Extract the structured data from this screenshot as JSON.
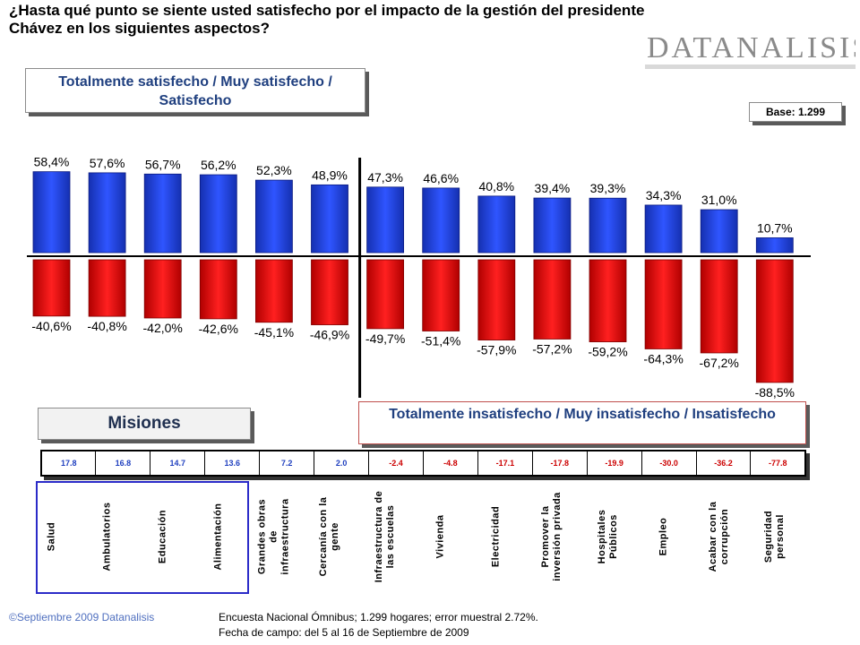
{
  "question": "¿Hasta qué punto se siente usted satisfecho por el impacto de la gestión del presidente Chávez en los siguientes aspectos?",
  "logo_text": "DATANALISIS",
  "positive_box": "Totalmente satisfecho / Muy satisfecho / Satisfecho",
  "negative_box": "Totalmente insatisfecho / Muy insatisfecho / Insatisfecho",
  "base_label": "Base: 1.299",
  "misiones_label": "Misiones",
  "footer_left": "©Septiembre 2009  Datanalisis",
  "footer_right_line1": "Encuesta Nacional Ómnibus; 1.299 hogares; error muestral 2.72%.",
  "footer_right_line2": "Fecha de campo: del 5 al 16 de Septiembre de 2009",
  "colors": {
    "positive": "#1f3fd9",
    "negative": "#e81010",
    "positive_text": "#1f3fbf",
    "negative_text": "#cc0000"
  },
  "chart_data": {
    "type": "bar",
    "categories": [
      "Salud",
      "Ambulatorios",
      "Educación",
      "Alimentación",
      "Grandes obras de infraestructura",
      "Cercanía con la gente",
      "Infraestructura de las escuelas",
      "Vivienda",
      "Electricidad",
      "Promover la inversión privada",
      "Hospitales Públicos",
      "Empleo",
      "Acabar con la corrupción",
      "Seguridad personal"
    ],
    "category_labels": [
      "Salud",
      "Ambulatorios",
      "Educación",
      "Alimentación",
      "Grandes obras\nde\ninfraestructura",
      "Cercanía con la\ngente",
      "Infraestructura de\nlas escuelas",
      "Vivienda",
      "Electricidad",
      "Promover la\ninversión privada",
      "Hospitales\nPúblicos",
      "Empleo",
      "Acabar con la\ncorrupción",
      "Seguridad\npersonal"
    ],
    "series": [
      {
        "values": [
          58.4,
          57.6,
          56.7,
          56.2,
          52.3,
          48.9,
          47.3,
          46.6,
          40.8,
          39.4,
          39.3,
          34.3,
          31.0,
          10.7
        ],
        "labels": [
          "58,4%",
          "57,6%",
          "56,7%",
          "56,2%",
          "52,3%",
          "48,9%",
          "47,3%",
          "46,6%",
          "40,8%",
          "39,4%",
          "39,3%",
          "34,3%",
          "31,0%",
          "10,7%"
        ]
      },
      {
        "values": [
          -40.6,
          -40.8,
          -42.0,
          -42.6,
          -45.1,
          -46.9,
          -49.7,
          -51.4,
          -57.9,
          -57.2,
          -59.2,
          -64.3,
          -67.2,
          -88.5
        ],
        "labels": [
          "-40,6%",
          "-40,8%",
          "-42,0%",
          "-42,6%",
          "-45,1%",
          "-46,9%",
          "-49,7%",
          "-51,4%",
          "-57,9%",
          "-57,2%",
          "-59,2%",
          "-64,3%",
          "-67,2%",
          "-88,5%"
        ]
      }
    ],
    "differences": [
      "17.8",
      "16.8",
      "14.7",
      "13.6",
      "7.2",
      "2.0",
      "-2.4",
      "-4.8",
      "-17.1",
      "-17.8",
      "-19.9",
      "-30.0",
      "-36.2",
      "-77.8"
    ],
    "misiones_count": 4,
    "ylim": [
      -90,
      60
    ],
    "grid": false
  }
}
